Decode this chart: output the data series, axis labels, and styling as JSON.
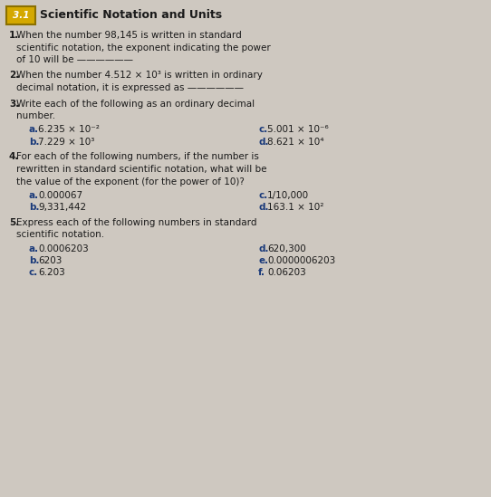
{
  "title": "Scientific Notation and Units",
  "section": "3.1",
  "background_color": "#cec8c0",
  "badge_color": "#d4a800",
  "badge_border": "#8B7000",
  "text_color": "#1a1a1a",
  "letter_color": "#1a3a7a",
  "q_num_color": "#1a1a1a",
  "font_size": 7.5,
  "title_font_size": 9.0,
  "badge_font_size": 7.5,
  "q1_lines": [
    "1.  When the number 98,145 is written in standard",
    "    scientific notation, the exponent indicating the power",
    "    of 10 will be ——————"
  ],
  "q2_lines": [
    "2.  When the number 4.512 × 10³ is written in ordinary",
    "    decimal notation, it is expressed as ———————"
  ],
  "q3_lines": [
    "3.  Write each of the following as an ordinary decimal",
    "    number."
  ],
  "q3_items_left": [
    {
      "letter": "a.",
      "text": "6.235 × 10⁻²"
    },
    {
      "letter": "b.",
      "text": "7.229 × 10³"
    }
  ],
  "q3_items_right": [
    {
      "letter": "c.",
      "text": "5.001 × 10⁻⁶"
    },
    {
      "letter": "d.",
      "text": "8.621 × 10⁴"
    }
  ],
  "q4_lines": [
    "4.  For each of the following numbers, if the number is",
    "    rewritten in standard scientific notation, what will be",
    "    the value of the exponent (for the power of 10)?"
  ],
  "q4_items_left": [
    {
      "letter": "a.",
      "text": "0.000067"
    },
    {
      "letter": "b.",
      "text": "9,331,442"
    }
  ],
  "q4_items_right": [
    {
      "letter": "c.",
      "text": "1/10,000"
    },
    {
      "letter": "d.",
      "text": "163.1 × 10²"
    }
  ],
  "q5_lines": [
    "5.  Express each of the following numbers in standard",
    "    scientific notation."
  ],
  "q5_items_left": [
    {
      "letter": "a.",
      "text": "0.0006203"
    },
    {
      "letter": "b.",
      "text": "6203"
    },
    {
      "letter": "c.",
      "text": "6.203"
    }
  ],
  "q5_items_right": [
    {
      "letter": "d.",
      "text": "620,300"
    },
    {
      "letter": "e.",
      "text": "0.0000006203"
    },
    {
      "letter": "f.",
      "text": "0.06203"
    }
  ]
}
